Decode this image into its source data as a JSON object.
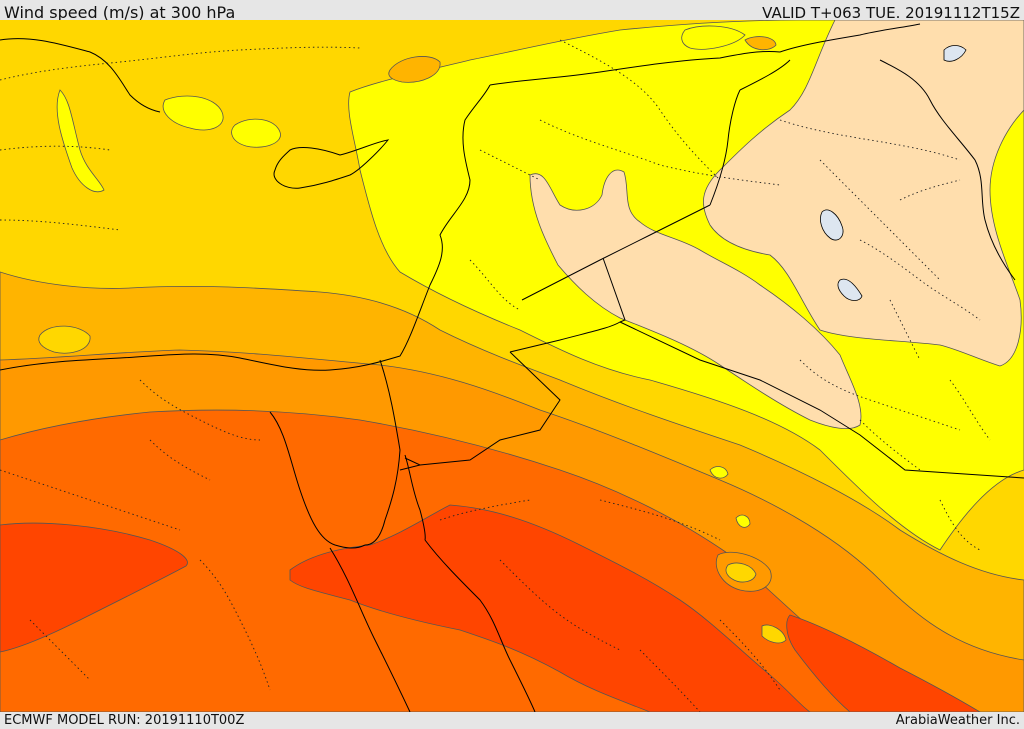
{
  "header": {
    "title": "Wind speed (m/s) at 300 hPa",
    "valid": "VALID T+063 TUE. 20191112T15Z"
  },
  "footer": {
    "model_run": "ECMWF MODEL RUN: 20191110T00Z",
    "credit": "ArabiaWeather Inc."
  },
  "map": {
    "variable": "wind speed",
    "units": "m/s",
    "level": "300 hPa",
    "fill_colors": {
      "band_1_weakest": "#ffdead",
      "band_2": "#ffff00",
      "band_3": "#ffd700",
      "band_4": "#ffb400",
      "band_5": "#ff9900",
      "band_6": "#ff6a00",
      "band_7_strongest": "#ff4500",
      "lakes": "#dde6f0",
      "coastlines": "#000000",
      "borders_dotted": "#222222",
      "contours": "#555555"
    }
  }
}
